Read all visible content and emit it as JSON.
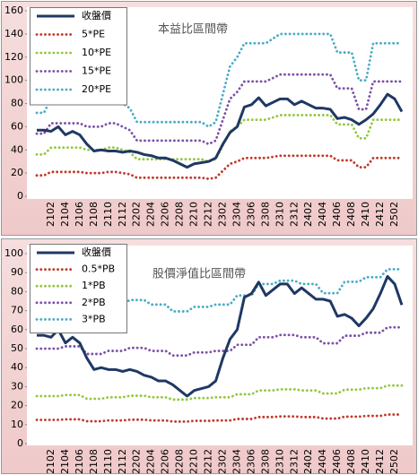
{
  "chart_data": [
    {
      "type": "line",
      "annotation": "本益比區間帶",
      "legend": "upper left",
      "grid": false,
      "categories": [
        null,
        null,
        "2102",
        null,
        "2104",
        null,
        "2106",
        null,
        "2108",
        null,
        "2110",
        null,
        "2112",
        null,
        "2202",
        null,
        "2204",
        null,
        "2206",
        null,
        "2208",
        null,
        "2210",
        null,
        "2212",
        null,
        "2302",
        null,
        "2304",
        null,
        "2306",
        null,
        "2308",
        null,
        "2310",
        null,
        "2312",
        null,
        "2402",
        null,
        "2404",
        null,
        "2406",
        null,
        "2408",
        null,
        "2410",
        null,
        "2412",
        null,
        "2502",
        null
      ],
      "ylim": [
        0,
        160
      ],
      "yticks": [
        0,
        20,
        40,
        60,
        80,
        100,
        120,
        140,
        160
      ],
      "series": [
        {
          "name": "收盤價",
          "color": "#1f3864",
          "style": "solid",
          "values": [
            57,
            57,
            56,
            60,
            53,
            56,
            53,
            45,
            39,
            40,
            39,
            39,
            38,
            39,
            38,
            36,
            35,
            33,
            33,
            31,
            28,
            25,
            28,
            29,
            30,
            33,
            45,
            55,
            60,
            77,
            79,
            85,
            78,
            81,
            84,
            84,
            79,
            82,
            79,
            76,
            76,
            75,
            67,
            68,
            66,
            62,
            66,
            71,
            79,
            88,
            84,
            73
          ]
        },
        {
          "name": "5*PE",
          "color": "#c0392b",
          "style": "dotted",
          "values": [
            18,
            18,
            21,
            21,
            21,
            21,
            21,
            20,
            20,
            20,
            21,
            21,
            20,
            19,
            16,
            16,
            16,
            16,
            16,
            16,
            16,
            16,
            16,
            16,
            15,
            16,
            22,
            28,
            30,
            33,
            33,
            33,
            33,
            34,
            35,
            35,
            35,
            35,
            35,
            35,
            35,
            35,
            31,
            31,
            31,
            25,
            25,
            33,
            33,
            33,
            33,
            33
          ]
        },
        {
          "name": "10*PE",
          "color": "#92c83e",
          "style": "dotted",
          "values": [
            36,
            36,
            42,
            42,
            42,
            42,
            42,
            40,
            40,
            40,
            42,
            42,
            40,
            38,
            32,
            32,
            32,
            32,
            32,
            32,
            32,
            32,
            32,
            32,
            30,
            32,
            44,
            56,
            60,
            66,
            66,
            66,
            66,
            68,
            70,
            70,
            70,
            70,
            70,
            70,
            70,
            70,
            62,
            62,
            62,
            50,
            50,
            66,
            66,
            66,
            66,
            66
          ]
        },
        {
          "name": "15*PE",
          "color": "#7d4fa8",
          "style": "dotted",
          "values": [
            54,
            54,
            63,
            63,
            63,
            63,
            63,
            60,
            60,
            60,
            63,
            63,
            60,
            57,
            48,
            48,
            48,
            48,
            48,
            48,
            48,
            48,
            48,
            48,
            45,
            48,
            66,
            84,
            90,
            99,
            99,
            99,
            99,
            102,
            105,
            105,
            105,
            105,
            105,
            105,
            105,
            105,
            93,
            93,
            93,
            75,
            75,
            99,
            99,
            99,
            99,
            99
          ]
        },
        {
          "name": "20*PE",
          "color": "#4bacc6",
          "style": "dotted",
          "values": [
            72,
            72,
            84,
            84,
            84,
            84,
            84,
            80,
            80,
            80,
            84,
            84,
            80,
            76,
            64,
            64,
            64,
            64,
            64,
            64,
            64,
            64,
            64,
            64,
            60,
            64,
            88,
            112,
            120,
            132,
            132,
            132,
            132,
            136,
            140,
            140,
            140,
            140,
            140,
            140,
            140,
            140,
            124,
            124,
            124,
            100,
            100,
            132,
            132,
            132,
            132,
            132
          ]
        }
      ]
    },
    {
      "type": "line",
      "annotation": "股價淨值比區間帶",
      "legend": "upper left",
      "grid": false,
      "categories": [
        null,
        null,
        "2102",
        null,
        "2104",
        null,
        "2106",
        null,
        "2108",
        null,
        "2110",
        null,
        "2112",
        null,
        "2202",
        null,
        "2204",
        null,
        "2206",
        null,
        "2208",
        null,
        "2210",
        null,
        "2212",
        null,
        "2302",
        null,
        "2304",
        null,
        "2306",
        null,
        "2308",
        null,
        "2310",
        null,
        "2312",
        null,
        "2402",
        null,
        "2404",
        null,
        "2406",
        null,
        "2408",
        null,
        "2410",
        null,
        "2412",
        null,
        "2502",
        null
      ],
      "ylim": [
        0,
        100
      ],
      "yticks": [
        0,
        10,
        20,
        30,
        40,
        50,
        60,
        70,
        80,
        90,
        100
      ],
      "series": [
        {
          "name": "收盤價",
          "color": "#1f3864",
          "style": "solid",
          "values": [
            57,
            57,
            56,
            60,
            53,
            56,
            53,
            45,
            39,
            40,
            39,
            39,
            38,
            39,
            38,
            36,
            35,
            33,
            33,
            31,
            28,
            25,
            28,
            29,
            30,
            33,
            45,
            55,
            60,
            77,
            79,
            85,
            78,
            81,
            84,
            84,
            79,
            82,
            79,
            76,
            76,
            75,
            67,
            68,
            66,
            62,
            66,
            71,
            79,
            88,
            84,
            73
          ]
        },
        {
          "name": "0.5*PB",
          "color": "#c0392b",
          "style": "dotted",
          "values": [
            12.5,
            12.5,
            12.5,
            12.5,
            12.8,
            12.8,
            12.8,
            11.8,
            11.8,
            11.8,
            12.2,
            12.2,
            12.2,
            12.6,
            12.6,
            12.6,
            12.2,
            12.2,
            12.2,
            11.6,
            11.6,
            11.6,
            12,
            12,
            12,
            12.2,
            12.2,
            12.2,
            13,
            13,
            13,
            14,
            14,
            14,
            14.3,
            14.3,
            14.3,
            14,
            14,
            14,
            13.2,
            13.2,
            13.2,
            14.2,
            14.2,
            14.2,
            14.6,
            14.6,
            14.6,
            15.3,
            15.3,
            15.3
          ]
        },
        {
          "name": "1*PB",
          "color": "#92c83e",
          "style": "dotted",
          "values": [
            25,
            25,
            25,
            25,
            25.6,
            25.6,
            25.6,
            23.6,
            23.6,
            23.6,
            24.4,
            24.4,
            24.4,
            25.2,
            25.2,
            25.2,
            24.4,
            24.4,
            24.4,
            23.2,
            23.2,
            23.2,
            24,
            24,
            24,
            24.4,
            24.4,
            24.4,
            26,
            26,
            26,
            28,
            28,
            28,
            28.6,
            28.6,
            28.6,
            28,
            28,
            28,
            26.4,
            26.4,
            26.4,
            28.4,
            28.4,
            28.4,
            29.2,
            29.2,
            29.2,
            30.6,
            30.6,
            30.6
          ]
        },
        {
          "name": "2*PB",
          "color": "#7d4fa8",
          "style": "dotted",
          "values": [
            50,
            50,
            50,
            50,
            51.2,
            51.2,
            51.2,
            47.2,
            47.2,
            47.2,
            48.8,
            48.8,
            48.8,
            50.4,
            50.4,
            50.4,
            48.8,
            48.8,
            48.8,
            46.4,
            46.4,
            46.4,
            48,
            48,
            48,
            48.8,
            48.8,
            48.8,
            52,
            52,
            52,
            56,
            56,
            56,
            57.2,
            57.2,
            57.2,
            56,
            56,
            56,
            52.8,
            52.8,
            52.8,
            56.8,
            56.8,
            56.8,
            58.4,
            58.4,
            58.4,
            61.2,
            61.2,
            61.2
          ]
        },
        {
          "name": "3*PB",
          "color": "#4bacc6",
          "style": "dotted",
          "values": [
            75,
            75,
            75,
            75,
            76.8,
            76.8,
            76.8,
            70.8,
            70.8,
            70.8,
            73.2,
            73.2,
            73.2,
            75.6,
            75.6,
            75.6,
            73.2,
            73.2,
            73.2,
            69.6,
            69.6,
            69.6,
            72,
            72,
            72,
            73.2,
            73.2,
            73.2,
            78,
            78,
            78,
            84,
            84,
            84,
            85.8,
            85.8,
            85.8,
            84,
            84,
            84,
            79.2,
            79.2,
            79.2,
            85.2,
            85.2,
            85.2,
            87.6,
            87.6,
            87.6,
            91.8,
            91.8,
            91.8
          ]
        }
      ]
    }
  ]
}
